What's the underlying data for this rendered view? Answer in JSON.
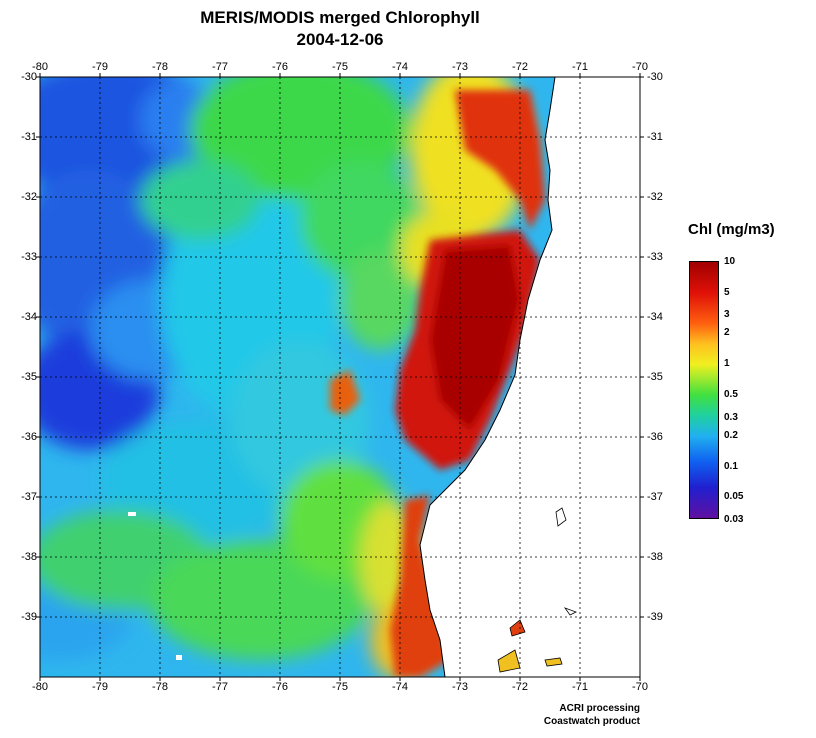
{
  "title": "MERIS/MODIS merged Chlorophyll",
  "date": "2004-12-06",
  "lon_ticks": [
    "-80",
    "-79",
    "-78",
    "-77",
    "-76",
    "-75",
    "-74",
    "-73",
    "-72",
    "-71",
    "-70"
  ],
  "lat_ticks": [
    "-30",
    "-31",
    "-32",
    "-33",
    "-34",
    "-35",
    "-36",
    "-37",
    "-38",
    "-39"
  ],
  "lon_range": [
    -80,
    -70
  ],
  "lat_range": [
    -40,
    -30
  ],
  "legend": {
    "title": "Chl (mg/m3)",
    "labels": [
      "10",
      "5",
      "3",
      "2",
      "1",
      "0.5",
      "0.3",
      "0.2",
      "0.1",
      "0.05",
      "0.03"
    ],
    "values": [
      10,
      5,
      3,
      2,
      1,
      0.5,
      0.3,
      0.2,
      0.1,
      0.05,
      0.03
    ],
    "range": [
      0.03,
      10
    ],
    "scale": "log"
  },
  "colors": {
    "land": "#ffffff",
    "low_chl": "#1e3cdc",
    "mid_chl": "#1ecbe6",
    "green_chl": "#28d93c",
    "high_chl": "#e02010",
    "very_high_chl": "#a00000"
  },
  "credits": {
    "line1": "ACRI processing",
    "line2": "Coastwatch product"
  }
}
